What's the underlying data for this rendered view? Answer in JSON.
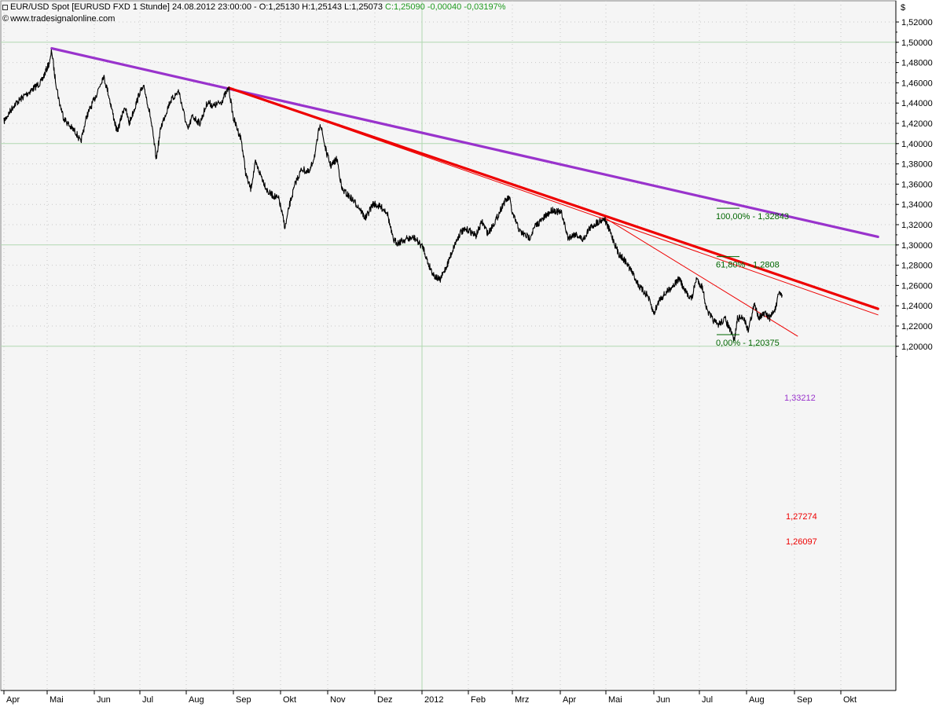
{
  "header": {
    "instrument": "EUR/USD Spot [EURUSD FXD  1 Stunde]",
    "datetime": "24.08.2012 23:00:00",
    "ohlc": "O:1,25130 H:1,25143 L:1,25073",
    "close_change": "C:1,25090 -0,00040 -0,03197%",
    "copyright": "www.tradesignalonline.com",
    "currency": "$"
  },
  "colors": {
    "price": "#000000",
    "purple_trend": "#9933cc",
    "red_trend": "#ee0000",
    "fib": "#006600",
    "change": "#1e9a1e",
    "plot_bg": "#f5f5f5",
    "grid_major": "#b0d8b0",
    "grid_minor": "#c8c8c8"
  },
  "chart_data": {
    "type": "line",
    "interval": "1 Stunde",
    "ylim": [
      1.19,
      1.53
    ],
    "y_ticks": [
      "1,52000",
      "1,50000",
      "1,48000",
      "1,46000",
      "1,44000",
      "1,42000",
      "1,40000",
      "1,38000",
      "1,36000",
      "1,34000",
      "1,32000",
      "1,30000",
      "1,28000",
      "1,26000",
      "1,24000",
      "1,22000",
      "1,20000"
    ],
    "x_ticks": [
      "Apr",
      "Mai",
      "Jun",
      "Jul",
      "Aug",
      "Sep",
      "Okt",
      "Nov",
      "Dez",
      "2012",
      "Feb",
      "Mrz",
      "Apr",
      "Mai",
      "Jun",
      "Jul",
      "Aug",
      "Sep",
      "Okt"
    ],
    "price_path": [
      {
        "x": "2011-04-01",
        "y": 1.422
      },
      {
        "x": "2011-04-08",
        "y": 1.438
      },
      {
        "x": "2011-04-15",
        "y": 1.447
      },
      {
        "x": "2011-04-22",
        "y": 1.455
      },
      {
        "x": "2011-04-27",
        "y": 1.461
      },
      {
        "x": "2011-05-03",
        "y": 1.482
      },
      {
        "x": "2011-05-04",
        "y": 1.492
      },
      {
        "x": "2011-05-06",
        "y": 1.467
      },
      {
        "x": "2011-05-09",
        "y": 1.441
      },
      {
        "x": "2011-05-12",
        "y": 1.425
      },
      {
        "x": "2011-05-16",
        "y": 1.417
      },
      {
        "x": "2011-05-20",
        "y": 1.411
      },
      {
        "x": "2011-05-23",
        "y": 1.401
      },
      {
        "x": "2011-05-27",
        "y": 1.427
      },
      {
        "x": "2011-06-02",
        "y": 1.447
      },
      {
        "x": "2011-06-07",
        "y": 1.467
      },
      {
        "x": "2011-06-10",
        "y": 1.451
      },
      {
        "x": "2011-06-16",
        "y": 1.411
      },
      {
        "x": "2011-06-21",
        "y": 1.437
      },
      {
        "x": "2011-06-24",
        "y": 1.42
      },
      {
        "x": "2011-06-28",
        "y": 1.437
      },
      {
        "x": "2011-07-01",
        "y": 1.451
      },
      {
        "x": "2011-07-04",
        "y": 1.455
      },
      {
        "x": "2011-07-08",
        "y": 1.427
      },
      {
        "x": "2011-07-12",
        "y": 1.385
      },
      {
        "x": "2011-07-15",
        "y": 1.416
      },
      {
        "x": "2011-07-21",
        "y": 1.441
      },
      {
        "x": "2011-07-27",
        "y": 1.452
      },
      {
        "x": "2011-08-02",
        "y": 1.413
      },
      {
        "x": "2011-08-05",
        "y": 1.427
      },
      {
        "x": "2011-08-10",
        "y": 1.42
      },
      {
        "x": "2011-08-15",
        "y": 1.441
      },
      {
        "x": "2011-08-19",
        "y": 1.437
      },
      {
        "x": "2011-08-24",
        "y": 1.441
      },
      {
        "x": "2011-08-29",
        "y": 1.455
      },
      {
        "x": "2011-09-01",
        "y": 1.425
      },
      {
        "x": "2011-09-06",
        "y": 1.404
      },
      {
        "x": "2011-09-09",
        "y": 1.369
      },
      {
        "x": "2011-09-12",
        "y": 1.355
      },
      {
        "x": "2011-09-15",
        "y": 1.381
      },
      {
        "x": "2011-09-19",
        "y": 1.367
      },
      {
        "x": "2011-09-23",
        "y": 1.352
      },
      {
        "x": "2011-09-26",
        "y": 1.349
      },
      {
        "x": "2011-09-30",
        "y": 1.345
      },
      {
        "x": "2011-10-04",
        "y": 1.317
      },
      {
        "x": "2011-10-07",
        "y": 1.34
      },
      {
        "x": "2011-10-11",
        "y": 1.362
      },
      {
        "x": "2011-10-15",
        "y": 1.375
      },
      {
        "x": "2011-10-20",
        "y": 1.371
      },
      {
        "x": "2011-10-24",
        "y": 1.392
      },
      {
        "x": "2011-10-27",
        "y": 1.421
      },
      {
        "x": "2011-10-31",
        "y": 1.392
      },
      {
        "x": "2011-11-03",
        "y": 1.378
      },
      {
        "x": "2011-11-07",
        "y": 1.385
      },
      {
        "x": "2011-11-10",
        "y": 1.355
      },
      {
        "x": "2011-11-16",
        "y": 1.346
      },
      {
        "x": "2011-11-21",
        "y": 1.337
      },
      {
        "x": "2011-11-25",
        "y": 1.326
      },
      {
        "x": "2011-11-30",
        "y": 1.341
      },
      {
        "x": "2011-12-05",
        "y": 1.337
      },
      {
        "x": "2011-12-09",
        "y": 1.333
      },
      {
        "x": "2011-12-13",
        "y": 1.305
      },
      {
        "x": "2011-12-16",
        "y": 1.302
      },
      {
        "x": "2011-12-22",
        "y": 1.306
      },
      {
        "x": "2011-12-27",
        "y": 1.307
      },
      {
        "x": "2012-01-02",
        "y": 1.297
      },
      {
        "x": "2012-01-05",
        "y": 1.282
      },
      {
        "x": "2012-01-09",
        "y": 1.27
      },
      {
        "x": "2012-01-13",
        "y": 1.265
      },
      {
        "x": "2012-01-18",
        "y": 1.281
      },
      {
        "x": "2012-01-23",
        "y": 1.301
      },
      {
        "x": "2012-01-27",
        "y": 1.313
      },
      {
        "x": "2012-02-01",
        "y": 1.315
      },
      {
        "x": "2012-02-06",
        "y": 1.309
      },
      {
        "x": "2012-02-10",
        "y": 1.323
      },
      {
        "x": "2012-02-14",
        "y": 1.311
      },
      {
        "x": "2012-02-20",
        "y": 1.327
      },
      {
        "x": "2012-02-24",
        "y": 1.341
      },
      {
        "x": "2012-02-28",
        "y": 1.347
      },
      {
        "x": "2012-03-01",
        "y": 1.331
      },
      {
        "x": "2012-03-06",
        "y": 1.313
      },
      {
        "x": "2012-03-12",
        "y": 1.307
      },
      {
        "x": "2012-03-16",
        "y": 1.319
      },
      {
        "x": "2012-03-21",
        "y": 1.326
      },
      {
        "x": "2012-03-27",
        "y": 1.335
      },
      {
        "x": "2012-04-02",
        "y": 1.331
      },
      {
        "x": "2012-04-06",
        "y": 1.307
      },
      {
        "x": "2012-04-11",
        "y": 1.311
      },
      {
        "x": "2012-04-16",
        "y": 1.305
      },
      {
        "x": "2012-04-20",
        "y": 1.316
      },
      {
        "x": "2012-04-25",
        "y": 1.322
      },
      {
        "x": "2012-04-30",
        "y": 1.326
      },
      {
        "x": "2012-05-04",
        "y": 1.312
      },
      {
        "x": "2012-05-09",
        "y": 1.292
      },
      {
        "x": "2012-05-14",
        "y": 1.283
      },
      {
        "x": "2012-05-18",
        "y": 1.273
      },
      {
        "x": "2012-05-23",
        "y": 1.258
      },
      {
        "x": "2012-05-28",
        "y": 1.25
      },
      {
        "x": "2012-06-01",
        "y": 1.232
      },
      {
        "x": "2012-06-05",
        "y": 1.247
      },
      {
        "x": "2012-06-08",
        "y": 1.251
      },
      {
        "x": "2012-06-13",
        "y": 1.259
      },
      {
        "x": "2012-06-18",
        "y": 1.267
      },
      {
        "x": "2012-06-21",
        "y": 1.255
      },
      {
        "x": "2012-06-26",
        "y": 1.247
      },
      {
        "x": "2012-06-29",
        "y": 1.267
      },
      {
        "x": "2012-07-03",
        "y": 1.258
      },
      {
        "x": "2012-07-06",
        "y": 1.235
      },
      {
        "x": "2012-07-10",
        "y": 1.226
      },
      {
        "x": "2012-07-13",
        "y": 1.221
      },
      {
        "x": "2012-07-18",
        "y": 1.227
      },
      {
        "x": "2012-07-24",
        "y": 1.206
      },
      {
        "x": "2012-07-26",
        "y": 1.227
      },
      {
        "x": "2012-07-30",
        "y": 1.229
      },
      {
        "x": "2012-08-02",
        "y": 1.216
      },
      {
        "x": "2012-08-06",
        "y": 1.241
      },
      {
        "x": "2012-08-09",
        "y": 1.229
      },
      {
        "x": "2012-08-13",
        "y": 1.232
      },
      {
        "x": "2012-08-16",
        "y": 1.228
      },
      {
        "x": "2012-08-20",
        "y": 1.238
      },
      {
        "x": "2012-08-22",
        "y": 1.253
      },
      {
        "x": "2012-08-24",
        "y": 1.251
      }
    ],
    "trendlines": [
      {
        "name": "purple",
        "label": "1,33212",
        "from": {
          "x": "2011-05-04",
          "y": 1.494
        },
        "to": {
          "x": "2012-10-25",
          "y": 1.308
        }
      },
      {
        "name": "red",
        "label": "1,27274",
        "from": {
          "x": "2011-08-29",
          "y": 1.455
        },
        "to": {
          "x": "2012-10-25",
          "y": 1.237
        }
      },
      {
        "name": "red_thin",
        "label": "",
        "from": {
          "x": "2011-08-29",
          "y": 1.455
        },
        "to": {
          "x": "2012-10-25",
          "y": 1.231
        }
      },
      {
        "name": "red_short",
        "label": "1,26097",
        "from": {
          "x": "2012-04-30",
          "y": 1.327
        },
        "to": {
          "x": "2012-09-03",
          "y": 1.21
        }
      }
    ],
    "fib_levels": [
      {
        "label": "100,00% - 1,32843",
        "y": 1.32843
      },
      {
        "label": "61,80% - 1,2808",
        "y": 1.2808
      },
      {
        "label": "0,00% - 1,20375",
        "y": 1.20375
      }
    ]
  }
}
